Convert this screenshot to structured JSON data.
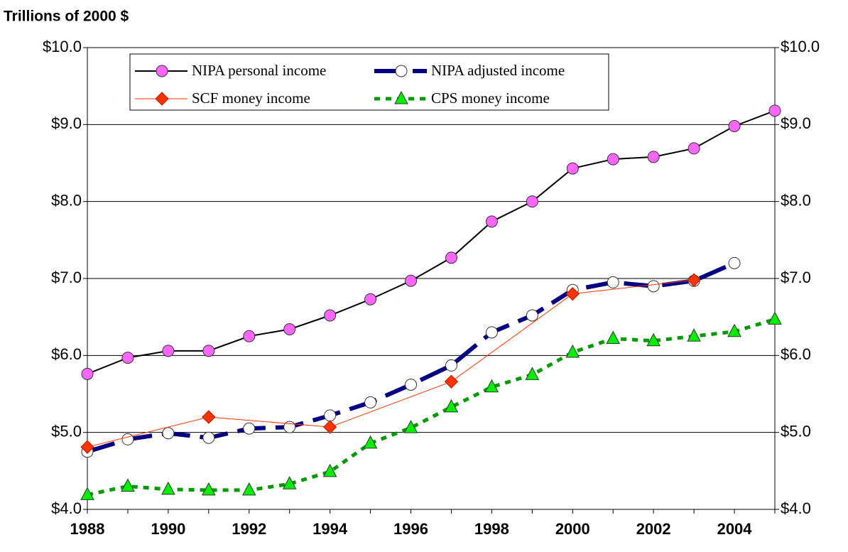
{
  "chart_data": {
    "type": "line",
    "y_axis_title": "Trillions of 2000 $",
    "x": [
      1988,
      1989,
      1990,
      1991,
      1992,
      1993,
      1994,
      1995,
      1996,
      1997,
      1998,
      1999,
      2000,
      2001,
      2002,
      2003,
      2004,
      2005
    ],
    "xlim": [
      1988,
      2005
    ],
    "xticks": [
      1988,
      1990,
      1992,
      1994,
      1996,
      1998,
      2000,
      2002,
      2004
    ],
    "ylim": [
      4,
      10
    ],
    "yticks": [
      {
        "value": 4,
        "label": "$4.0"
      },
      {
        "value": 5,
        "label": "$5.0"
      },
      {
        "value": 6,
        "label": "$6.0"
      },
      {
        "value": 7,
        "label": "$7.0"
      },
      {
        "value": 8,
        "label": "$8.0"
      },
      {
        "value": 9,
        "label": "$9.0"
      },
      {
        "value": 10,
        "label": "$10.0"
      }
    ],
    "y2lim": [
      4,
      10
    ],
    "y2ticks": [
      {
        "value": 4,
        "label": "$4.0"
      },
      {
        "value": 5,
        "label": "$5.0"
      },
      {
        "value": 6,
        "label": "$6.0"
      },
      {
        "value": 7,
        "label": "$7.0"
      },
      {
        "value": 8,
        "label": "$8.0"
      },
      {
        "value": 9,
        "label": "$9.0"
      },
      {
        "value": 10,
        "label": "$10.0"
      }
    ],
    "grid": true,
    "legend": "top",
    "series": [
      {
        "name": "NIPA personal income",
        "color": "#000000",
        "marker_color": "#ff66ff",
        "marker": "circle",
        "line_style": "solid",
        "values": [
          5.76,
          5.97,
          6.06,
          6.06,
          6.25,
          6.34,
          6.52,
          6.73,
          6.97,
          7.27,
          7.74,
          8.0,
          8.43,
          8.55,
          8.58,
          8.69,
          8.98,
          9.18
        ]
      },
      {
        "name": "NIPA adjusted income",
        "color": "#000080",
        "marker_color": "#ffffff",
        "marker": "circle",
        "line_style": "dashed",
        "values": [
          4.75,
          4.91,
          4.99,
          4.93,
          5.05,
          5.07,
          5.22,
          5.39,
          5.62,
          5.87,
          6.3,
          6.52,
          6.85,
          6.95,
          6.9,
          6.97,
          7.2,
          null
        ]
      },
      {
        "name": "SCF money income",
        "color": "#ff3300",
        "marker_color": "#ff3300",
        "marker": "diamond",
        "line_style": "thin",
        "x": [
          1988,
          1991,
          1994,
          1997,
          2000,
          2003
        ],
        "values": [
          4.81,
          5.2,
          5.07,
          5.66,
          6.8,
          6.98
        ]
      },
      {
        "name": "CPS money income",
        "color": "#009900",
        "marker_color": "#00ee00",
        "marker": "triangle",
        "line_style": "dotted",
        "values": [
          4.19,
          4.3,
          4.26,
          4.25,
          4.25,
          4.33,
          4.49,
          4.86,
          5.06,
          5.33,
          5.59,
          5.75,
          6.04,
          6.22,
          6.19,
          6.25,
          6.31,
          6.47
        ]
      }
    ]
  }
}
